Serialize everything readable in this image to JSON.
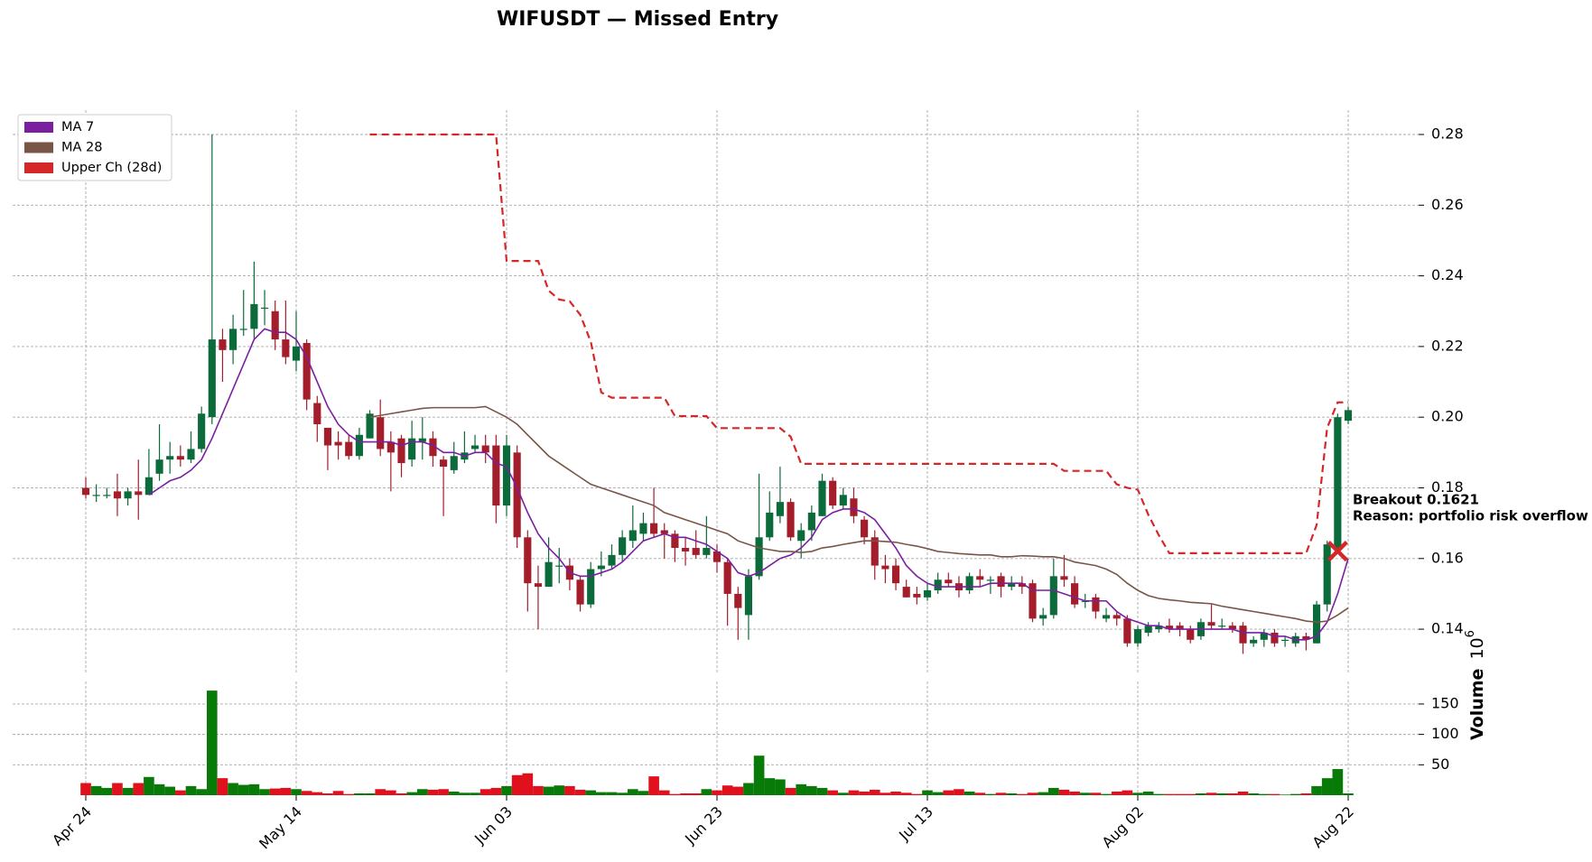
{
  "chart_data": {
    "type": "candlestick",
    "title": "WIFUSDT — Missed Entry",
    "categories": [
      "Apr 24",
      null,
      null,
      null,
      null,
      null,
      null,
      null,
      null,
      null,
      null,
      null,
      null,
      null,
      null,
      null,
      null,
      null,
      null,
      null,
      "May 14",
      null,
      null,
      null,
      null,
      null,
      null,
      null,
      null,
      null,
      null,
      null,
      null,
      null,
      null,
      null,
      null,
      null,
      null,
      null,
      "Jun 03",
      null,
      null,
      null,
      null,
      null,
      null,
      null,
      null,
      null,
      null,
      null,
      null,
      null,
      null,
      null,
      null,
      null,
      null,
      null,
      "Jun 23",
      null,
      null,
      null,
      null,
      null,
      null,
      null,
      null,
      null,
      null,
      null,
      null,
      null,
      null,
      null,
      null,
      null,
      null,
      null,
      "Jul 13",
      null,
      null,
      null,
      null,
      null,
      null,
      null,
      null,
      null,
      null,
      null,
      null,
      null,
      null,
      null,
      null,
      null,
      null,
      null,
      "Aug 02",
      null,
      null,
      null,
      null,
      null,
      null,
      null,
      null,
      null,
      null,
      null,
      null,
      null,
      null,
      null,
      null,
      null,
      null,
      null,
      "Aug 22"
    ],
    "open": [
      0.18,
      0.178,
      0.178,
      0.179,
      0.177,
      0.179,
      0.178,
      0.184,
      0.188,
      0.189,
      0.188,
      0.191,
      0.2,
      0.222,
      0.219,
      0.225,
      0.225,
      0.231,
      0.23,
      0.222,
      0.216,
      0.221,
      0.204,
      0.197,
      0.193,
      0.193,
      0.189,
      0.194,
      0.2,
      0.193,
      0.194,
      0.188,
      0.193,
      0.194,
      0.188,
      0.185,
      0.188,
      0.191,
      0.192,
      0.192,
      0.175,
      0.19,
      0.166,
      0.153,
      0.152,
      0.158,
      0.158,
      0.154,
      0.147,
      0.157,
      0.158,
      0.161,
      0.165,
      0.167,
      0.17,
      0.168,
      0.167,
      0.163,
      0.163,
      0.161,
      0.162,
      0.159,
      0.15,
      0.144,
      0.155,
      0.166,
      0.172,
      0.176,
      0.165,
      0.168,
      0.172,
      0.182,
      0.175,
      0.177,
      0.171,
      0.166,
      0.158,
      0.158,
      0.152,
      0.15,
      0.149,
      0.151,
      0.154,
      0.153,
      0.151,
      0.155,
      0.154,
      0.155,
      0.152,
      0.153,
      0.153,
      0.143,
      0.144,
      0.155,
      0.153,
      0.148,
      0.149,
      0.143,
      0.144,
      0.143,
      0.136,
      0.139,
      0.14,
      0.141,
      0.141,
      0.14,
      0.138,
      0.142,
      0.141,
      0.141,
      0.141,
      0.136,
      0.137,
      0.139,
      0.137,
      0.136,
      0.138,
      0.136,
      0.147,
      0.163,
      0.199
    ],
    "high": [
      0.183,
      0.181,
      0.18,
      0.184,
      0.18,
      0.188,
      0.191,
      0.198,
      0.193,
      0.192,
      0.196,
      0.203,
      0.28,
      0.225,
      0.229,
      0.236,
      0.244,
      0.236,
      0.233,
      0.233,
      0.23,
      0.222,
      0.206,
      0.197,
      0.196,
      0.195,
      0.197,
      0.202,
      0.205,
      0.196,
      0.195,
      0.199,
      0.2,
      0.196,
      0.189,
      0.193,
      0.196,
      0.195,
      0.195,
      0.195,
      0.195,
      0.192,
      0.168,
      0.158,
      0.166,
      0.163,
      0.16,
      0.155,
      0.159,
      0.162,
      0.164,
      0.168,
      0.175,
      0.173,
      0.18,
      0.17,
      0.168,
      0.166,
      0.168,
      0.172,
      0.164,
      0.16,
      0.152,
      0.157,
      0.184,
      0.179,
      0.186,
      0.177,
      0.17,
      0.175,
      0.184,
      0.183,
      0.18,
      0.18,
      0.172,
      0.168,
      0.161,
      0.16,
      0.154,
      0.152,
      0.153,
      0.156,
      0.156,
      0.155,
      0.156,
      0.157,
      0.155,
      0.156,
      0.155,
      0.155,
      0.154,
      0.146,
      0.16,
      0.161,
      0.155,
      0.15,
      0.15,
      0.146,
      0.145,
      0.144,
      0.141,
      0.142,
      0.142,
      0.143,
      0.142,
      0.141,
      0.143,
      0.147,
      0.143,
      0.142,
      0.142,
      0.138,
      0.14,
      0.14,
      0.138,
      0.139,
      0.139,
      0.148,
      0.165,
      0.201,
      0.203
    ],
    "low": [
      0.177,
      0.176,
      0.177,
      0.172,
      0.175,
      0.171,
      0.178,
      0.182,
      0.184,
      0.186,
      0.187,
      0.19,
      0.198,
      0.21,
      0.215,
      0.223,
      0.222,
      0.226,
      0.219,
      0.215,
      0.213,
      0.202,
      0.193,
      0.185,
      0.188,
      0.188,
      0.188,
      0.194,
      0.189,
      0.179,
      0.183,
      0.186,
      0.188,
      0.186,
      0.172,
      0.184,
      0.187,
      0.19,
      0.187,
      0.17,
      0.172,
      0.163,
      0.145,
      0.14,
      0.152,
      0.153,
      0.151,
      0.145,
      0.146,
      0.155,
      0.157,
      0.159,
      0.163,
      0.165,
      0.166,
      0.16,
      0.159,
      0.158,
      0.16,
      0.16,
      0.156,
      0.141,
      0.137,
      0.137,
      0.154,
      0.165,
      0.17,
      0.165,
      0.16,
      0.165,
      0.172,
      0.174,
      0.174,
      0.17,
      0.164,
      0.154,
      0.153,
      0.151,
      0.149,
      0.147,
      0.148,
      0.15,
      0.152,
      0.149,
      0.15,
      0.152,
      0.15,
      0.149,
      0.151,
      0.15,
      0.142,
      0.141,
      0.143,
      0.152,
      0.146,
      0.146,
      0.143,
      0.142,
      0.141,
      0.135,
      0.135,
      0.138,
      0.139,
      0.139,
      0.138,
      0.136,
      0.137,
      0.14,
      0.14,
      0.139,
      0.133,
      0.135,
      0.135,
      0.135,
      0.135,
      0.135,
      0.134,
      0.136,
      0.145,
      0.162,
      0.198
    ],
    "close": [
      0.178,
      0.178,
      0.178,
      0.177,
      0.179,
      0.178,
      0.183,
      0.188,
      0.189,
      0.188,
      0.191,
      0.201,
      0.222,
      0.219,
      0.225,
      0.225,
      0.232,
      0.231,
      0.222,
      0.217,
      0.22,
      0.205,
      0.198,
      0.192,
      0.192,
      0.189,
      0.195,
      0.201,
      0.191,
      0.19,
      0.187,
      0.194,
      0.194,
      0.189,
      0.186,
      0.189,
      0.19,
      0.192,
      0.19,
      0.175,
      0.192,
      0.166,
      0.153,
      0.152,
      0.159,
      0.158,
      0.154,
      0.147,
      0.157,
      0.158,
      0.161,
      0.166,
      0.168,
      0.17,
      0.167,
      0.167,
      0.163,
      0.162,
      0.161,
      0.163,
      0.159,
      0.15,
      0.146,
      0.155,
      0.166,
      0.173,
      0.176,
      0.166,
      0.168,
      0.173,
      0.182,
      0.175,
      0.178,
      0.172,
      0.166,
      0.158,
      0.157,
      0.153,
      0.149,
      0.149,
      0.151,
      0.154,
      0.153,
      0.151,
      0.155,
      0.154,
      0.154,
      0.152,
      0.153,
      0.152,
      0.143,
      0.144,
      0.155,
      0.154,
      0.147,
      0.148,
      0.145,
      0.144,
      0.143,
      0.136,
      0.14,
      0.141,
      0.141,
      0.14,
      0.14,
      0.137,
      0.142,
      0.141,
      0.141,
      0.14,
      0.136,
      0.137,
      0.139,
      0.136,
      0.137,
      0.138,
      0.137,
      0.147,
      0.164,
      0.2,
      0.202
    ],
    "volume": [
      20,
      15,
      12,
      20,
      12,
      20,
      30,
      18,
      14,
      8,
      15,
      10,
      172,
      28,
      20,
      17,
      18,
      10,
      11,
      12,
      10,
      7,
      5,
      3,
      7,
      2,
      3,
      3,
      10,
      8,
      3,
      5,
      10,
      9,
      10,
      6,
      4,
      4,
      10,
      12,
      15,
      33,
      36,
      15,
      14,
      16,
      15,
      9,
      8,
      5,
      5,
      4,
      10,
      7,
      31,
      8,
      2,
      3,
      3,
      10,
      8,
      16,
      14,
      20,
      65,
      28,
      26,
      12,
      18,
      15,
      12,
      8,
      4,
      8,
      6,
      9,
      4,
      6,
      4,
      2,
      8,
      5,
      8,
      10,
      6,
      4,
      2,
      4,
      3,
      2,
      4,
      5,
      12,
      9,
      6,
      4,
      4,
      2,
      6,
      8,
      4,
      6,
      2,
      2,
      2,
      2,
      3,
      4,
      3,
      3,
      6,
      3,
      2,
      2,
      1,
      2,
      3,
      15,
      28,
      43,
      3
    ],
    "series": [
      {
        "name": "MA 7",
        "color": "#7b1fa2",
        "values": [
          null,
          null,
          null,
          null,
          null,
          null,
          0.178,
          0.18,
          0.182,
          0.183,
          0.185,
          0.188,
          0.194,
          0.201,
          0.208,
          0.215,
          0.222,
          0.225,
          0.224,
          0.224,
          0.222,
          0.217,
          0.21,
          0.203,
          0.198,
          0.195,
          0.193,
          0.193,
          0.193,
          0.193,
          0.192,
          0.193,
          0.193,
          0.192,
          0.19,
          0.19,
          0.189,
          0.19,
          0.19,
          0.187,
          0.186,
          0.18,
          0.173,
          0.167,
          0.163,
          0.16,
          0.156,
          0.155,
          0.155,
          0.156,
          0.157,
          0.159,
          0.162,
          0.165,
          0.166,
          0.167,
          0.166,
          0.166,
          0.165,
          0.164,
          0.162,
          0.16,
          0.156,
          0.155,
          0.156,
          0.158,
          0.16,
          0.161,
          0.163,
          0.166,
          0.171,
          0.173,
          0.174,
          0.174,
          0.173,
          0.171,
          0.167,
          0.163,
          0.158,
          0.155,
          0.153,
          0.152,
          0.152,
          0.152,
          0.152,
          0.152,
          0.153,
          0.153,
          0.153,
          0.153,
          0.151,
          0.151,
          0.151,
          0.15,
          0.149,
          0.148,
          0.148,
          0.148,
          0.145,
          0.143,
          0.142,
          0.141,
          0.141,
          0.14,
          0.14,
          0.14,
          0.14,
          0.14,
          0.14,
          0.14,
          0.139,
          0.139,
          0.139,
          0.138,
          0.138,
          0.137,
          0.137,
          0.138,
          0.142,
          0.15,
          0.16
        ]
      },
      {
        "name": "MA 28",
        "color": "#795548",
        "values": [
          null,
          null,
          null,
          null,
          null,
          null,
          null,
          null,
          null,
          null,
          null,
          null,
          null,
          null,
          null,
          null,
          null,
          null,
          null,
          null,
          null,
          null,
          null,
          null,
          null,
          null,
          null,
          0.2,
          0.2005,
          0.201,
          0.2015,
          0.202,
          0.2025,
          0.2027,
          0.2027,
          0.2027,
          0.2027,
          0.2027,
          0.203,
          0.2015,
          0.2,
          0.198,
          0.195,
          0.192,
          0.189,
          0.187,
          0.185,
          0.183,
          0.181,
          0.18,
          0.179,
          0.178,
          0.177,
          0.176,
          0.175,
          0.173,
          0.172,
          0.171,
          0.17,
          0.169,
          0.168,
          0.167,
          0.165,
          0.164,
          0.163,
          0.1625,
          0.162,
          0.162,
          0.1617,
          0.162,
          0.163,
          0.1634,
          0.164,
          0.1645,
          0.165,
          0.165,
          0.1648,
          0.1646,
          0.164,
          0.1635,
          0.1628,
          0.162,
          0.1617,
          0.1614,
          0.1612,
          0.161,
          0.161,
          0.1605,
          0.1605,
          0.1608,
          0.1607,
          0.1605,
          0.1605,
          0.16,
          0.159,
          0.1585,
          0.158,
          0.157,
          0.1555,
          0.153,
          0.151,
          0.1495,
          0.1487,
          0.1483,
          0.148,
          0.1476,
          0.1474,
          0.1472,
          0.1465,
          0.146,
          0.1455,
          0.145,
          0.1445,
          0.144,
          0.1435,
          0.143,
          0.1423,
          0.142,
          0.1423,
          0.144,
          0.146
        ]
      },
      {
        "name": "Upper Ch (28d)",
        "color": "#d62728",
        "dashed": true,
        "values": [
          null,
          null,
          null,
          null,
          null,
          null,
          null,
          null,
          null,
          null,
          null,
          null,
          null,
          null,
          null,
          null,
          null,
          null,
          null,
          null,
          null,
          null,
          null,
          null,
          null,
          null,
          null,
          0.28,
          0.28,
          0.28,
          0.28,
          0.28,
          0.28,
          0.28,
          0.28,
          0.28,
          0.28,
          0.28,
          0.28,
          0.28,
          0.2442,
          0.2442,
          0.2442,
          0.2442,
          0.2358,
          0.2333,
          0.2328,
          0.229,
          0.2214,
          0.207,
          0.2055,
          0.2055,
          0.2055,
          0.2055,
          0.2055,
          0.2055,
          0.2003,
          0.2003,
          0.2003,
          0.2003,
          0.1969,
          0.1969,
          0.1969,
          0.1969,
          0.1969,
          0.1969,
          0.1969,
          0.1945,
          0.1868,
          0.1868,
          0.1868,
          0.1868,
          0.1868,
          0.1868,
          0.1868,
          0.1868,
          0.1868,
          0.1868,
          0.1868,
          0.1868,
          0.1868,
          0.1868,
          0.1868,
          0.1868,
          0.1868,
          0.1868,
          0.1868,
          0.1868,
          0.1868,
          0.1868,
          0.1868,
          0.1868,
          0.1868,
          0.1848,
          0.1848,
          0.1848,
          0.1848,
          0.1848,
          0.181,
          0.18,
          0.1795,
          0.1724,
          0.1666,
          0.1615,
          0.1615,
          0.1615,
          0.1615,
          0.1615,
          0.1615,
          0.1615,
          0.1615,
          0.1615,
          0.1615,
          0.1615,
          0.1615,
          0.1615,
          0.1615,
          0.1695,
          0.197,
          0.2042,
          0.2042
        ]
      }
    ],
    "up_color": "#0b6b3a",
    "down_color": "#a31d2a",
    "volume_up_color": "#087a08",
    "volume_down_color": "#e0101c",
    "ylim": [
      0.1275,
      0.2869
    ],
    "yticks": [
      0.14,
      0.16,
      0.18,
      {
        "value": 0.2,
        "label": "0.20"
      },
      0.22,
      0.24,
      0.26,
      0.28
    ],
    "volume_ylim": [
      0,
      187
    ],
    "volume_yticks": [
      50,
      100,
      150
    ],
    "volume_label": "Volume",
    "volume_scale": "10",
    "volume_scale_exponent": "6",
    "grid": true,
    "legend": "upper left",
    "breakout": {
      "index": 119,
      "value": 0.1621,
      "label": "Breakout 0.1621",
      "reason": "Reason: portfolio risk overflow",
      "color": "#d62728"
    }
  }
}
